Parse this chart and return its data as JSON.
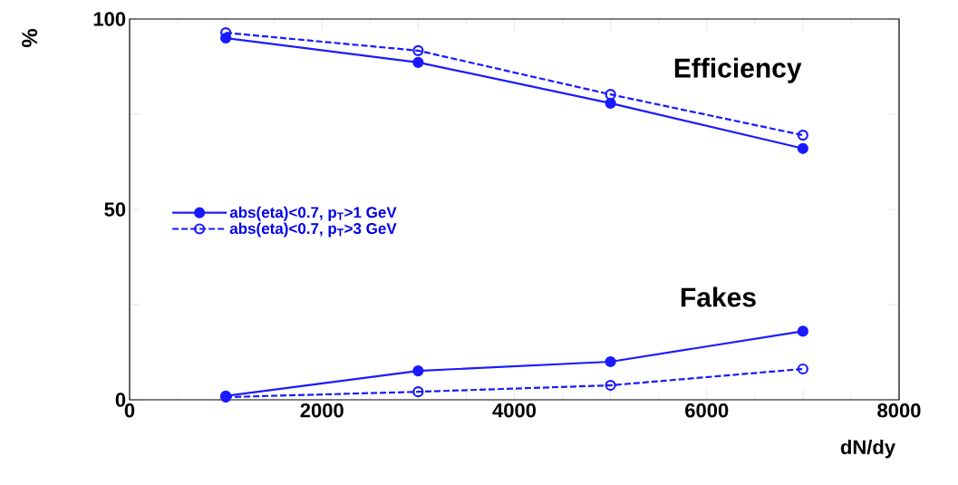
{
  "chart_data": {
    "type": "line",
    "xlabel": "dN/dy",
    "ylabel": "%",
    "x": [
      1000,
      3000,
      5000,
      7000
    ],
    "series": [
      {
        "name": "abs(eta)<0.7, p$_{T}$>1 GeV",
        "color": "#1a1aff",
        "line_style": "solid",
        "values": [
          95,
          88.6,
          77.9,
          66
        ]
      },
      {
        "name": "abs(eta)<0.7, p$_{T}$>3 GeV",
        "color": "#1a1aff",
        "line_style": "dashed",
        "values": [
          96.4,
          91.7,
          80.2,
          69.5
        ]
      },
      {
        "color": "#1a1aff",
        "line_style": "solid",
        "values": [
          1,
          7.6,
          10,
          18
        ]
      },
      {
        "color": "#1a1aff",
        "line_style": "dashed",
        "values": [
          0.7,
          2.1,
          3.8,
          8.1
        ]
      }
    ],
    "annotations": [
      "Efficiency",
      "Fakes"
    ],
    "xlim": [
      0,
      8000
    ],
    "ylim": [
      0,
      100
    ],
    "xticks": [
      0,
      {
        "value": 1000,
        "label": null
      },
      2000,
      {
        "value": 3000,
        "label": null
      },
      4000,
      {
        "value": 5000,
        "label": null
      },
      6000,
      {
        "value": 7000,
        "label": null
      },
      8000
    ],
    "yticks": [
      0,
      {
        "value": 25,
        "label": null
      },
      50,
      {
        "value": 75,
        "label": null
      },
      100
    ],
    "marker": "circle",
    "legend": "center left",
    "grid": false
  }
}
